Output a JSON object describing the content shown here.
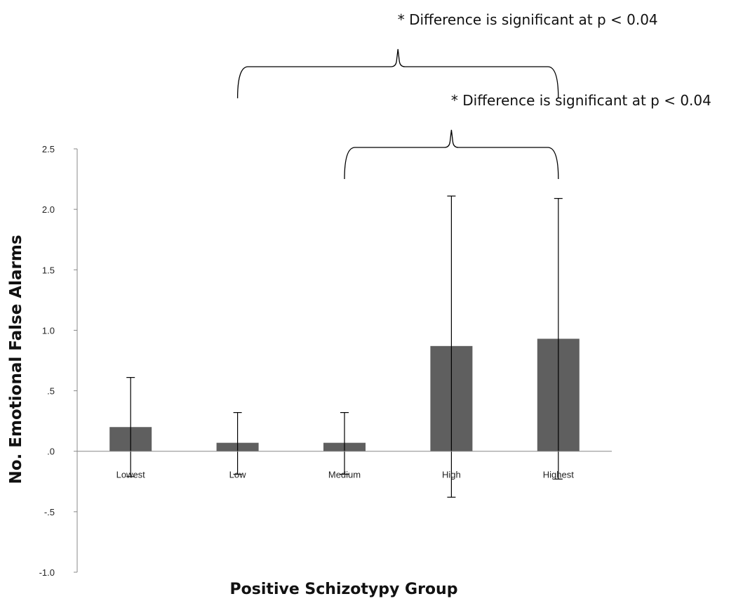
{
  "chart_data": {
    "type": "bar",
    "title": "",
    "xlabel": "Positive Schizotypy Group",
    "ylabel": "No. Emotional False Alarms",
    "ylim": [
      -1.0,
      2.5
    ],
    "yticks": [
      {
        "value": 2.5,
        "label": "2.5"
      },
      {
        "value": 2.0,
        "label": "2.0"
      },
      {
        "value": 1.5,
        "label": "1.5"
      },
      {
        "value": 1.0,
        "label": "1.0"
      },
      {
        "value": 0.5,
        "label": ".5"
      },
      {
        "value": 0.0,
        "label": ".0"
      },
      {
        "value": -0.5,
        "label": "-.5"
      },
      {
        "value": -1.0,
        "label": "-1.0"
      }
    ],
    "categories": [
      "Lowest",
      "Low",
      "Medium",
      "High",
      "Highest"
    ],
    "values": [
      0.2,
      0.07,
      0.07,
      0.87,
      0.93
    ],
    "error_upper": [
      0.61,
      0.32,
      0.32,
      2.11,
      2.09
    ],
    "error_lower": [
      -0.21,
      -0.19,
      -0.19,
      -0.38,
      -0.23
    ],
    "bar_color": "#5f5f5f",
    "grid": false,
    "annotations": [
      {
        "text": "* Difference is significant at p < 0.04",
        "from_category": 1,
        "to_category": 4
      },
      {
        "text": "* Difference is significant at p < 0.04",
        "from_category": 2,
        "to_category": 4
      }
    ]
  }
}
